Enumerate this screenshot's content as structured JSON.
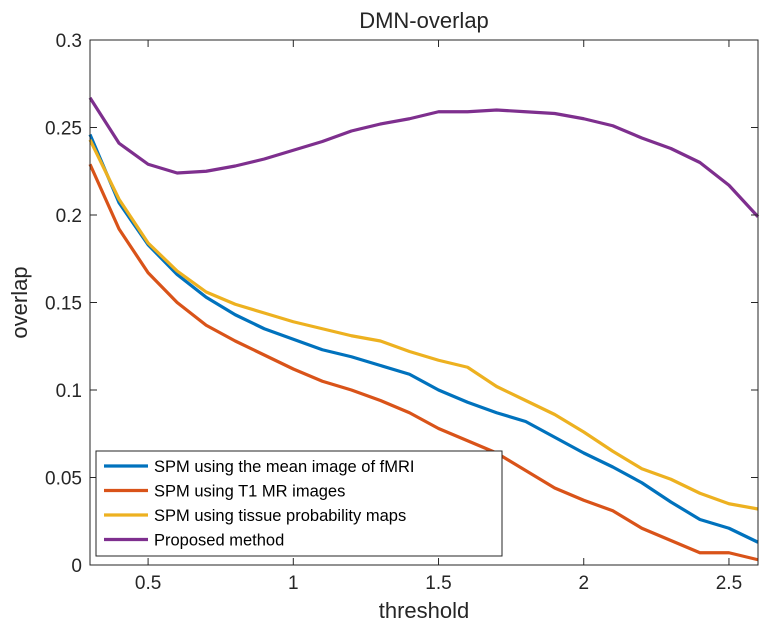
{
  "chart_data": {
    "type": "line",
    "title": "DMN-overlap",
    "xlabel": "threshold",
    "ylabel": "overlap",
    "xlim": [
      0.3,
      2.6
    ],
    "ylim": [
      0,
      0.3
    ],
    "xticks": [
      0.5,
      1,
      1.5,
      2,
      2.5
    ],
    "xtick_labels": [
      "0.5",
      "1",
      "1.5",
      "2",
      "2.5"
    ],
    "yticks": [
      0,
      0.05,
      0.1,
      0.15,
      0.2,
      0.25,
      0.3
    ],
    "ytick_labels": [
      "0",
      "0.05",
      "0.1",
      "0.15",
      "0.2",
      "0.25",
      "0.3"
    ],
    "grid": false,
    "legend_position": "bottom-left",
    "x": [
      0.3,
      0.4,
      0.5,
      0.6,
      0.7,
      0.8,
      0.9,
      1.0,
      1.1,
      1.2,
      1.3,
      1.4,
      1.5,
      1.6,
      1.7,
      1.8,
      1.9,
      2.0,
      2.1,
      2.2,
      2.3,
      2.4,
      2.5,
      2.6
    ],
    "series": [
      {
        "name": "SPM using the mean image of fMRI",
        "color": "#0072BD",
        "values": [
          0.246,
          0.207,
          0.183,
          0.166,
          0.153,
          0.143,
          0.135,
          0.129,
          0.123,
          0.119,
          0.114,
          0.109,
          0.1,
          0.093,
          0.087,
          0.082,
          0.073,
          0.064,
          0.056,
          0.047,
          0.036,
          0.026,
          0.021,
          0.013
        ]
      },
      {
        "name": "SPM using T1 MR images",
        "color": "#D95319",
        "values": [
          0.229,
          0.192,
          0.167,
          0.15,
          0.137,
          0.128,
          0.12,
          0.112,
          0.105,
          0.1,
          0.094,
          0.087,
          0.078,
          0.071,
          0.064,
          0.054,
          0.044,
          0.037,
          0.031,
          0.021,
          0.014,
          0.007,
          0.007,
          0.003
        ]
      },
      {
        "name": "SPM using tissue probability maps",
        "color": "#EDB120",
        "values": [
          0.243,
          0.209,
          0.184,
          0.168,
          0.156,
          0.149,
          0.144,
          0.139,
          0.135,
          0.131,
          0.128,
          0.122,
          0.117,
          0.113,
          0.102,
          0.094,
          0.086,
          0.076,
          0.065,
          0.055,
          0.049,
          0.041,
          0.035,
          0.032
        ]
      },
      {
        "name": "Proposed method",
        "color": "#7E2F8E",
        "values": [
          0.267,
          0.241,
          0.229,
          0.224,
          0.225,
          0.228,
          0.232,
          0.237,
          0.242,
          0.248,
          0.252,
          0.255,
          0.259,
          0.259,
          0.26,
          0.259,
          0.258,
          0.255,
          0.251,
          0.244,
          0.238,
          0.23,
          0.217,
          0.199
        ]
      }
    ]
  }
}
